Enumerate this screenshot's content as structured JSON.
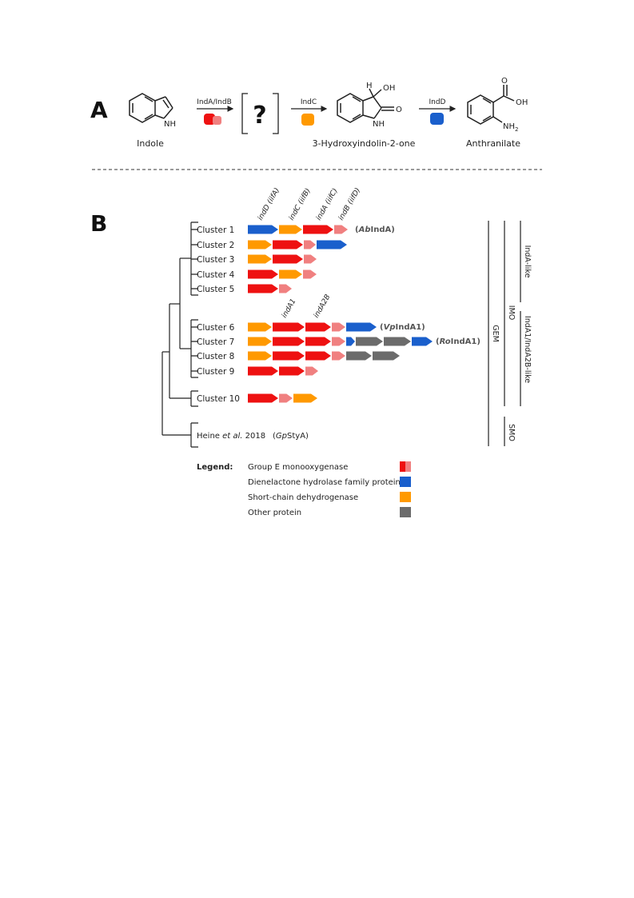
{
  "colors": {
    "gem_red": "#ee1111",
    "gem_pink": "#f08080",
    "dienelactone_blue": "#1a5fcc",
    "scd_orange": "#ff9900",
    "other_gray": "#6b6b6b",
    "line": "#222222",
    "divider": "#999999"
  },
  "panel_a": {
    "letter": "A",
    "indole_nh": "NH",
    "indole_name": "Indole",
    "step1_enzyme": "IndA/IndB",
    "intermediate": "?",
    "step2_enzyme": "IndC",
    "hydroxy_h": "H",
    "hydroxy_oh": "OH",
    "hydroxy_o": "O",
    "hydroxy_nh": "NH",
    "hydroxy_name": "3-Hydroxyindolin-2-one",
    "step3_enzyme": "IndD",
    "anth_o": "O",
    "anth_oh": "OH",
    "anth_nh2": "NH",
    "anth_nh2_sub": "2",
    "anth_name": "Anthranilate"
  },
  "panel_b": {
    "letter": "B",
    "gene_labels_top": [
      "indD (iifA)",
      "indC (iifB)",
      "indA (iifC)",
      "indB (iifD)"
    ],
    "gene_labels_mid": [
      "indA1",
      "indA2B"
    ],
    "clusters": [
      {
        "label": "Cluster 1",
        "genes": [
          "blue",
          "orange",
          "red",
          "pink"
        ],
        "note_pre": "(",
        "note_em": "Ab",
        "note_rest": "IndA)"
      },
      {
        "label": "Cluster 2",
        "genes": [
          "orange",
          "red",
          "pink",
          "blue"
        ]
      },
      {
        "label": "Cluster 3",
        "genes": [
          "orange",
          "red",
          "pink"
        ]
      },
      {
        "label": "Cluster 4",
        "genes": [
          "red",
          "orange",
          "pink"
        ]
      },
      {
        "label": "Cluster 5",
        "genes": [
          "red",
          "pink"
        ]
      },
      {
        "label": "Cluster 6",
        "genes": [
          "orange",
          "red",
          "red",
          "pink",
          "blue"
        ],
        "note_pre": "(",
        "note_em": "Vp",
        "note_rest": "IndA1)"
      },
      {
        "label": "Cluster 7",
        "genes": [
          "orange",
          "red",
          "red",
          "pink",
          "blue",
          "gray",
          "gray",
          "blue"
        ],
        "note_pre": "(",
        "note_em": "Ro",
        "note_rest": "IndA1)"
      },
      {
        "label": "Cluster 8",
        "genes": [
          "orange",
          "red",
          "red",
          "pink",
          "gray",
          "gray"
        ]
      },
      {
        "label": "Cluster 9",
        "genes": [
          "red",
          "red",
          "pink"
        ]
      },
      {
        "label": "Cluster 10",
        "genes": [
          "red",
          "pink",
          "orange"
        ]
      }
    ],
    "reference": {
      "pre": "Heine ",
      "em": "et al.",
      "post": " 2018",
      "enzyme_pre": "(",
      "enzyme_em": "Gp",
      "enzyme_rest": "StyA)"
    },
    "brackets": {
      "gem": "GEM",
      "imo": "IMO",
      "smo": "SMO",
      "inda_like": "IndA-like",
      "inda1_like": "IndA1/IndA2B-like"
    }
  },
  "legend": {
    "title": "Legend:",
    "items": [
      {
        "label": "Group E monooxygenase",
        "icon": "red-pink-split-square"
      },
      {
        "label": "Dienelactone hydrolase family protein",
        "icon": "blue-square"
      },
      {
        "label": "Short-chain dehydrogenase",
        "icon": "orange-square"
      },
      {
        "label": "Other protein",
        "icon": "gray-square"
      }
    ]
  }
}
